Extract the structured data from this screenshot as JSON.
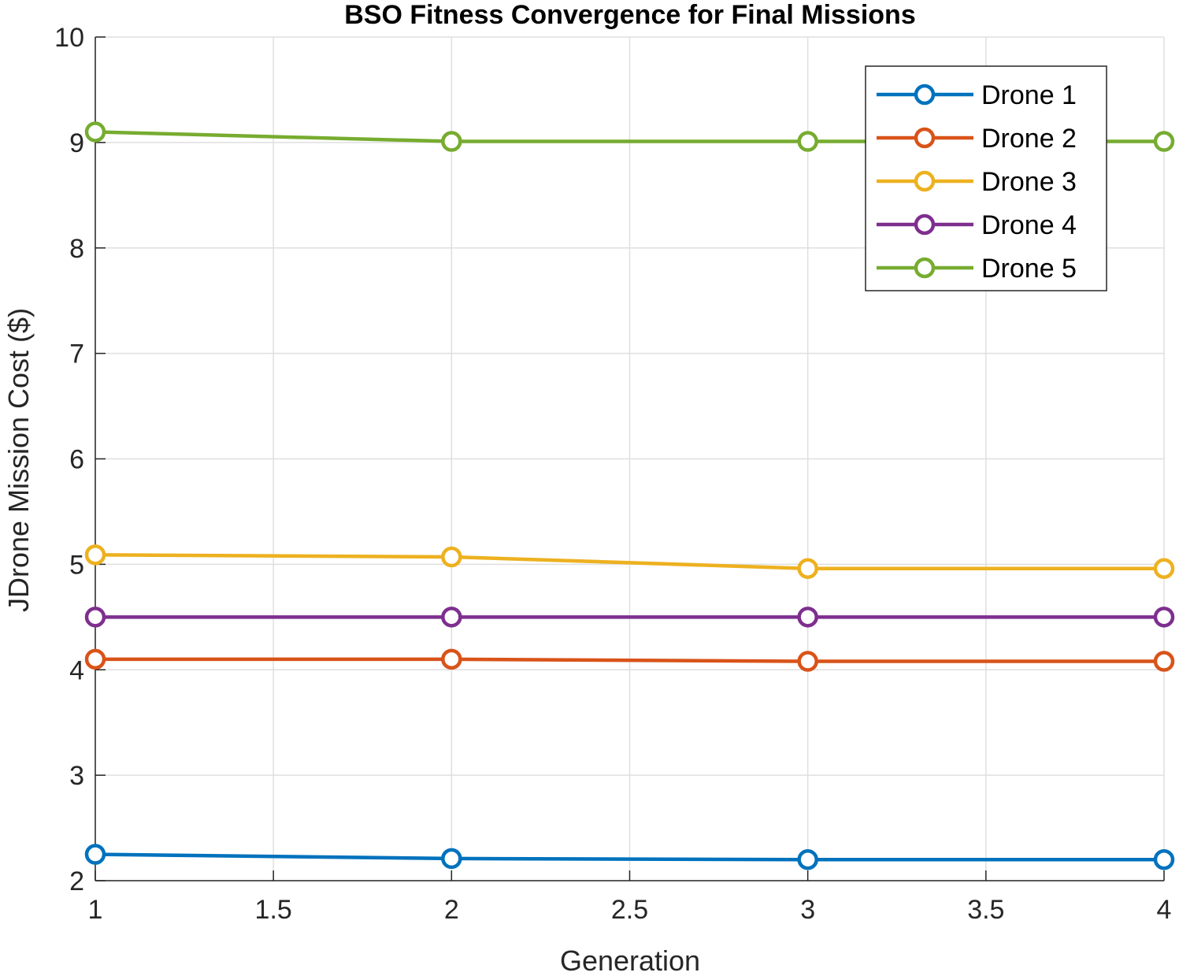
{
  "chart_data": {
    "type": "line",
    "title": "BSO Fitness Convergence for Final Missions",
    "xlabel": "Generation",
    "ylabel": "JDrone Mission Cost ($)",
    "xlim": [
      1,
      4
    ],
    "ylim": [
      2,
      10
    ],
    "xticks": [
      1,
      1.5,
      2,
      2.5,
      3,
      3.5,
      4
    ],
    "xtick_labels": [
      "1",
      "1.5",
      "2",
      "2.5",
      "3",
      "3.5",
      "4"
    ],
    "yticks": [
      2,
      3,
      4,
      5,
      6,
      7,
      8,
      9,
      10
    ],
    "ytick_labels": [
      "2",
      "3",
      "4",
      "5",
      "6",
      "7",
      "8",
      "9",
      "10"
    ],
    "grid": true,
    "legend_position": "top-right",
    "marker": "circle",
    "x": [
      1,
      2,
      3,
      4
    ],
    "series": [
      {
        "name": "Drone 1",
        "color": "#0072BD",
        "values": [
          2.25,
          2.21,
          2.2,
          2.2
        ]
      },
      {
        "name": "Drone 2",
        "color": "#D95319",
        "values": [
          4.1,
          4.1,
          4.08,
          4.08
        ]
      },
      {
        "name": "Drone 3",
        "color": "#EDB120",
        "values": [
          5.09,
          5.07,
          4.96,
          4.96
        ]
      },
      {
        "name": "Drone 4",
        "color": "#7E2F8E",
        "values": [
          4.5,
          4.5,
          4.5,
          4.5
        ]
      },
      {
        "name": "Drone 5",
        "color": "#77AC30",
        "values": [
          9.1,
          9.01,
          9.01,
          9.01
        ]
      }
    ]
  }
}
